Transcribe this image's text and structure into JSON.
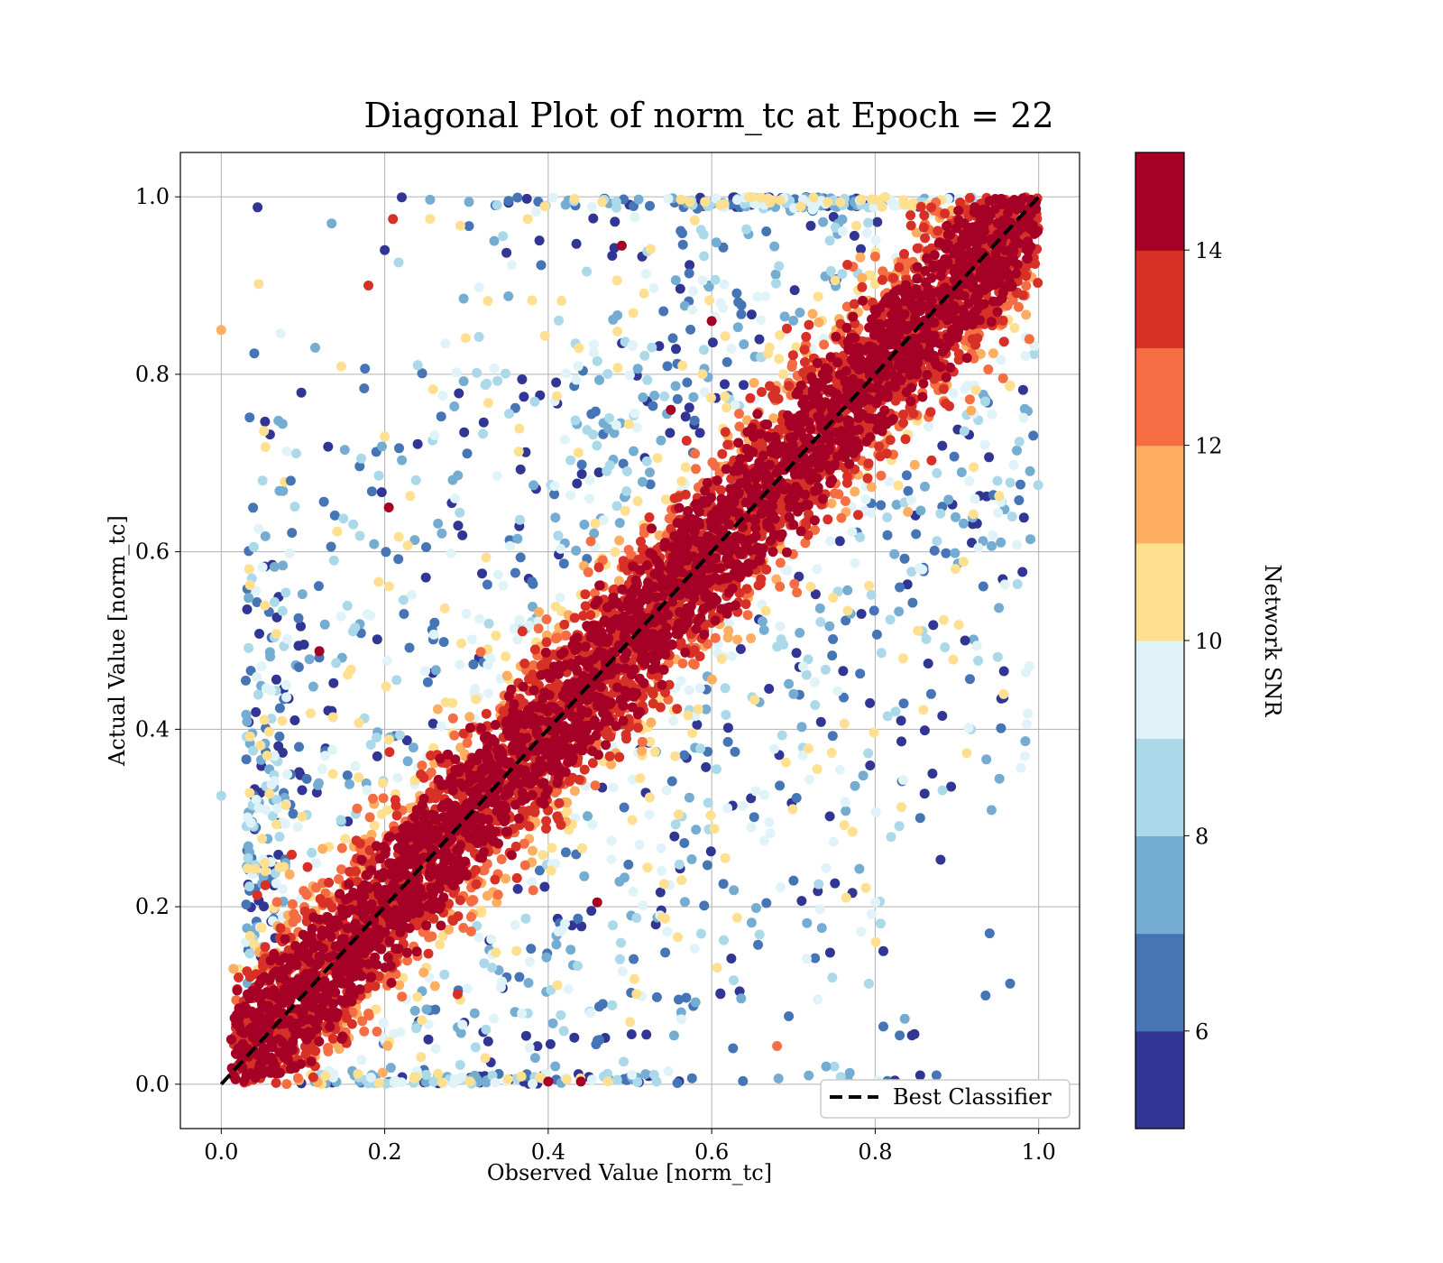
{
  "chart_data": {
    "type": "scatter",
    "title": "Diagonal Plot of norm_tc at Epoch = 22",
    "xlabel": "Observed Value [norm_tc]",
    "ylabel": "Actual Value [norm_tc]",
    "xlim": [
      -0.05,
      1.05
    ],
    "ylim": [
      -0.05,
      1.05
    ],
    "x_ticks": [
      0.0,
      0.2,
      0.4,
      0.6,
      0.8,
      1.0
    ],
    "y_ticks": [
      0.0,
      0.2,
      0.4,
      0.6,
      0.8,
      1.0
    ],
    "x_tick_labels": [
      "0.0",
      "0.2",
      "0.4",
      "0.6",
      "0.8",
      "1.0"
    ],
    "y_tick_labels": [
      "0.0",
      "0.2",
      "0.4",
      "0.6",
      "0.8",
      "1.0"
    ],
    "grid": true,
    "legend": {
      "position": "lower-right",
      "entries": [
        {
          "label": "Best Classifier",
          "style": "black dashed line"
        }
      ]
    },
    "reference_line": {
      "label": "Best Classifier",
      "x": [
        0.0,
        1.0
      ],
      "y": [
        0.0,
        1.0
      ],
      "color": "#000000",
      "dash": true
    },
    "colorbar": {
      "label": "Network SNR",
      "min": 5,
      "max": 15,
      "ticks": [
        6,
        8,
        10,
        12,
        14
      ],
      "tick_labels": [
        "6",
        "8",
        "10",
        "12",
        "14"
      ],
      "bins": 10,
      "colors": [
        "#313695",
        "#4575b4",
        "#74add1",
        "#abd9e9",
        "#e0f3f8",
        "#fee090",
        "#fdae61",
        "#f46d43",
        "#d73027",
        "#a50026"
      ]
    },
    "points": [
      {
        "x": 0.0,
        "y": 0.85,
        "snr": 11.5
      },
      {
        "x": 0.0,
        "y": 0.325,
        "snr": 8.5
      },
      {
        "x": 0.085,
        "y": 0.68,
        "snr": 6.5
      },
      {
        "x": 0.115,
        "y": 0.83,
        "snr": 7.5
      },
      {
        "x": 0.135,
        "y": 0.97,
        "snr": 7.5
      },
      {
        "x": 0.18,
        "y": 0.9,
        "snr": 13.5
      },
      {
        "x": 0.21,
        "y": 0.975,
        "snr": 13.5
      },
      {
        "x": 0.12,
        "y": 0.488,
        "snr": 14.5
      },
      {
        "x": 0.09,
        "y": 0.41,
        "snr": 5.5
      },
      {
        "x": 0.095,
        "y": 0.47,
        "snr": 6.5
      },
      {
        "x": 0.2,
        "y": 0.94,
        "snr": 5.5
      },
      {
        "x": 0.205,
        "y": 0.65,
        "snr": 14.5
      },
      {
        "x": 0.94,
        "y": 0.17,
        "snr": 6.5
      },
      {
        "x": 0.935,
        "y": 0.1,
        "snr": 6.5
      },
      {
        "x": 0.91,
        "y": 0.5,
        "snr": 5.5
      },
      {
        "x": 0.88,
        "y": 0.253,
        "snr": 5.5
      },
      {
        "x": 0.87,
        "y": 0.35,
        "snr": 5.5
      },
      {
        "x": 0.855,
        "y": 0.3,
        "snr": 6.5
      },
      {
        "x": 0.855,
        "y": 0.01,
        "snr": 5.5
      },
      {
        "x": 0.875,
        "y": 0.01,
        "snr": 6.5
      },
      {
        "x": 0.845,
        "y": 0.055,
        "snr": 5.5
      },
      {
        "x": 0.83,
        "y": 0.055,
        "snr": 6.5
      },
      {
        "x": 0.81,
        "y": 0.15,
        "snr": 5.5
      },
      {
        "x": 0.81,
        "y": 0.065,
        "snr": 6.5
      },
      {
        "x": 0.825,
        "y": 0.42,
        "snr": 8.5
      },
      {
        "x": 0.83,
        "y": 0.56,
        "snr": 6.5
      },
      {
        "x": 0.84,
        "y": 0.645,
        "snr": 11.5
      },
      {
        "x": 0.85,
        "y": 0.62,
        "snr": 6.5
      },
      {
        "x": 0.68,
        "y": 0.043,
        "snr": 12.5
      },
      {
        "x": 0.75,
        "y": 0.02,
        "snr": 8.5
      },
      {
        "x": 0.74,
        "y": 0.02,
        "snr": 7.5
      },
      {
        "x": 0.4,
        "y": 0.003,
        "snr": 14.5
      },
      {
        "x": 0.44,
        "y": 0.003,
        "snr": 14.5
      },
      {
        "x": 0.46,
        "y": 0.205,
        "snr": 14.5
      },
      {
        "x": 0.49,
        "y": 0.945,
        "snr": 14.5
      },
      {
        "x": 0.6,
        "y": 0.86,
        "snr": 14.5
      },
      {
        "x": 0.55,
        "y": 0.76,
        "snr": 14.5
      },
      {
        "x": 0.2,
        "y": 0.73,
        "snr": 10.5
      }
    ]
  }
}
